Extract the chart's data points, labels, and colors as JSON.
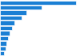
{
  "values": [
    227,
    125,
    80,
    65,
    42,
    35,
    28,
    24,
    20,
    17,
    12
  ],
  "bar_color": "#1a7fd4",
  "background_color": "#ffffff",
  "plot_bg_color": "#f2f2f2",
  "xlim_max": 240,
  "bar_height": 0.82,
  "figsize": [
    1.0,
    0.71
  ],
  "dpi": 100
}
